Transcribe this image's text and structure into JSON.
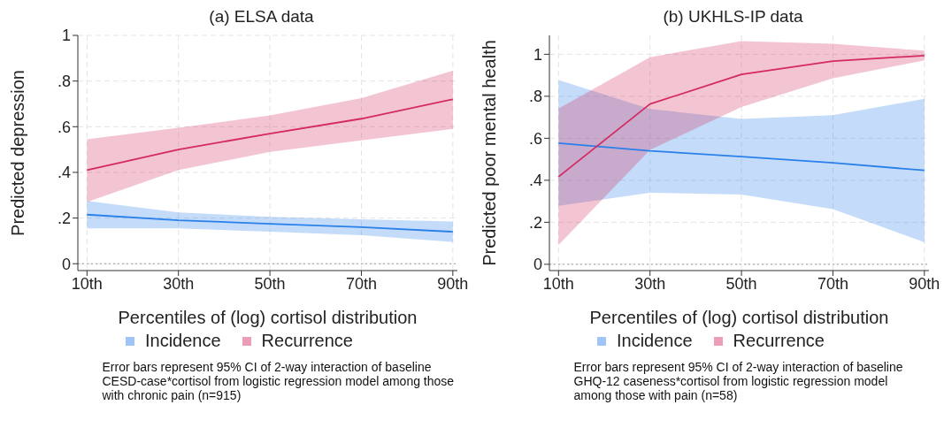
{
  "chart_data": [
    {
      "type": "line",
      "title": "(a) ELSA data",
      "xlabel": "Percentiles of (log) cortisol distribution",
      "ylabel": "Predicted depression",
      "x": [
        10,
        30,
        50,
        70,
        90
      ],
      "xlim": [
        8,
        91
      ],
      "xticks": [
        {
          "value": 10,
          "label": "10th"
        },
        {
          "value": 30,
          "label": "30th"
        },
        {
          "value": 50,
          "label": "50th"
        },
        {
          "value": 70,
          "label": "70th"
        },
        {
          "value": 90,
          "label": "90th"
        }
      ],
      "ylim": [
        -0.03,
        1.0
      ],
      "yticks": [
        {
          "value": 0,
          "label": "0"
        },
        {
          "value": 0.2,
          "label": ".2"
        },
        {
          "value": 0.4,
          "label": ".4"
        },
        {
          "value": 0.6,
          "label": ".6"
        },
        {
          "value": 0.8,
          "label": ".8"
        },
        {
          "value": 1,
          "label": "1"
        }
      ],
      "grid": true,
      "legend": "bottom",
      "marker": "none",
      "line_style": "solid",
      "ref_lines": [
        {
          "axis": "y",
          "value": 0,
          "line_style": "dotted",
          "color": "#999999"
        }
      ],
      "series": [
        {
          "name": "Incidence",
          "color": "#2a80ea",
          "values": [
            0.215,
            0.19,
            0.175,
            0.16,
            0.14
          ],
          "lower": [
            0.155,
            0.155,
            0.14,
            0.125,
            0.095
          ],
          "upper": [
            0.275,
            0.225,
            0.205,
            0.195,
            0.185
          ]
        },
        {
          "name": "Recurrence",
          "color": "#d42a5e",
          "values": [
            0.41,
            0.5,
            0.57,
            0.635,
            0.72
          ],
          "lower": [
            0.27,
            0.41,
            0.49,
            0.54,
            0.59
          ],
          "upper": [
            0.545,
            0.595,
            0.65,
            0.725,
            0.845
          ]
        }
      ],
      "annotations": [
        "Error bars represent 95% CI of 2-way interaction of baseline CESD-case*cortisol from logistic regression model among those with chronic pain (n=915)"
      ]
    },
    {
      "type": "line",
      "title": "(b) UKHLS-IP data",
      "xlabel": "Percentiles of (log) cortisol distribution",
      "ylabel": "Predicted poor mental health",
      "x": [
        10,
        30,
        50,
        70,
        90
      ],
      "xlim": [
        8,
        91
      ],
      "xticks": [
        {
          "value": 10,
          "label": "10th"
        },
        {
          "value": 30,
          "label": "30th"
        },
        {
          "value": 50,
          "label": "50th"
        },
        {
          "value": 70,
          "label": "70th"
        },
        {
          "value": 90,
          "label": "90th"
        }
      ],
      "ylim": [
        -0.03,
        1.09
      ],
      "yticks": [
        {
          "value": 0,
          "label": "0"
        },
        {
          "value": 0.2,
          "label": ".2"
        },
        {
          "value": 0.4,
          "label": ".4"
        },
        {
          "value": 0.6,
          "label": ".6"
        },
        {
          "value": 0.8,
          "label": ".8"
        },
        {
          "value": 1,
          "label": "1"
        }
      ],
      "grid": true,
      "legend": "bottom",
      "marker": "none",
      "line_style": "solid",
      "ref_lines": [
        {
          "axis": "y",
          "value": 0,
          "line_style": "dotted",
          "color": "#999999"
        }
      ],
      "series": [
        {
          "name": "Incidence",
          "color": "#2a80ea",
          "values": [
            0.577,
            0.54,
            0.513,
            0.483,
            0.447
          ],
          "lower": [
            0.278,
            0.341,
            0.332,
            0.263,
            0.105
          ],
          "upper": [
            0.877,
            0.74,
            0.692,
            0.71,
            0.788
          ]
        },
        {
          "name": "Recurrence",
          "color": "#d42a5e",
          "values": [
            0.417,
            0.763,
            0.904,
            0.967,
            0.994
          ],
          "lower": [
            0.092,
            0.545,
            0.749,
            0.886,
            0.971
          ],
          "upper": [
            0.742,
            0.986,
            1.063,
            1.05,
            1.017
          ]
        }
      ],
      "annotations": [
        "Error bars represent 95% CI of 2-way interaction of baseline GHQ-12 caseness*cortisol from logistic regression model among those with pain (n=58)"
      ]
    }
  ]
}
